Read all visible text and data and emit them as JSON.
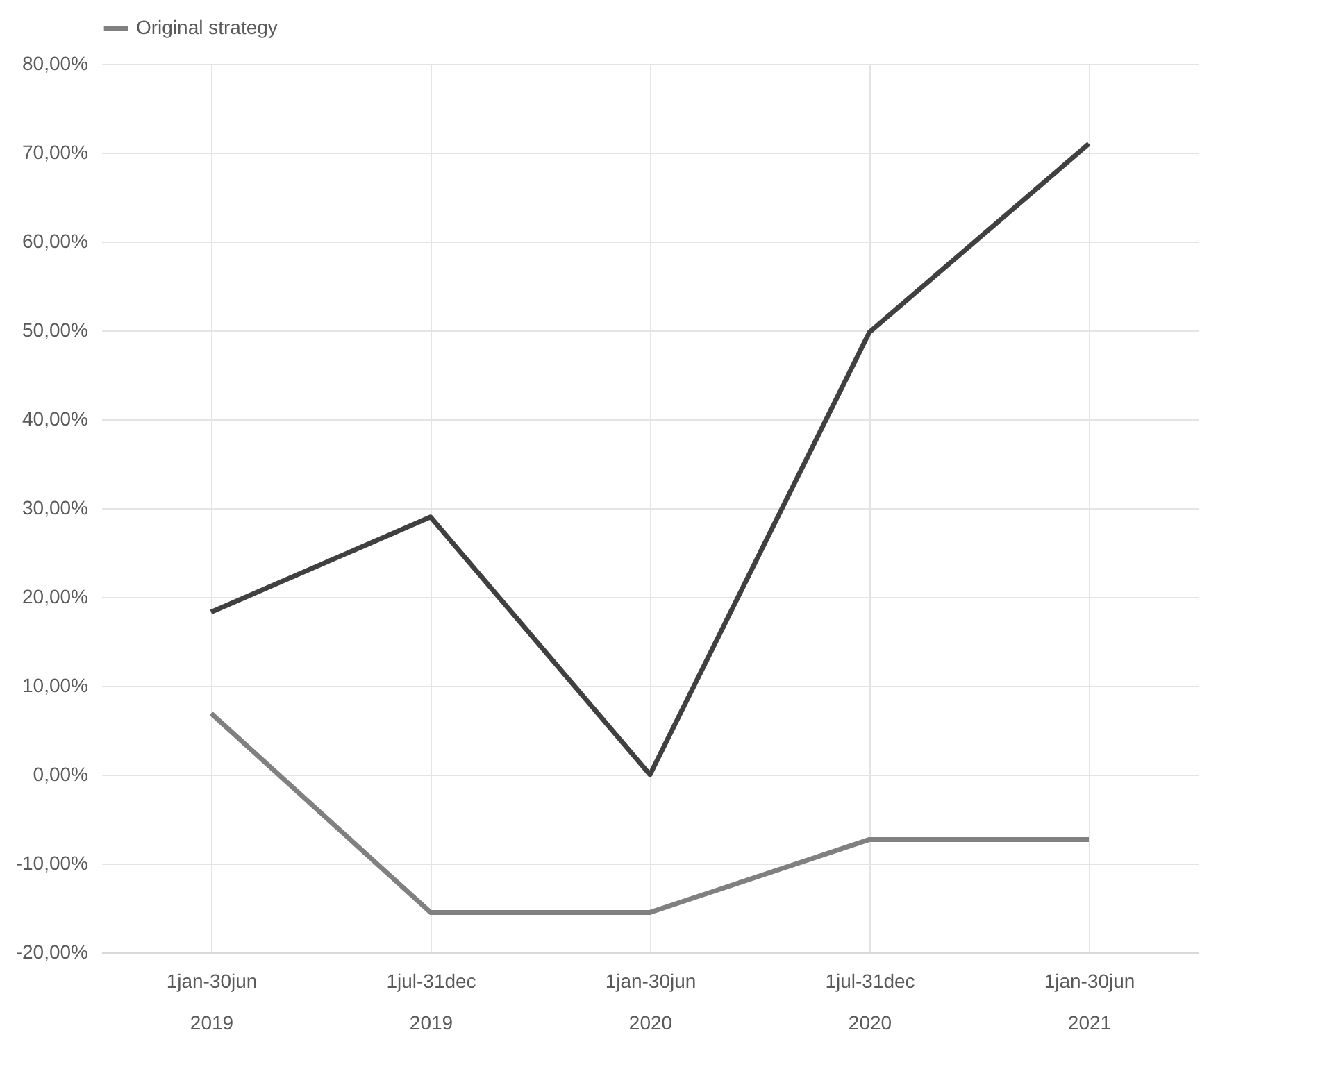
{
  "chart_data": {
    "type": "line",
    "categories": [
      "1jan-30jun\n2019",
      "1jul-31dec\n2019",
      "1jan-30jun\n2020",
      "1jul-31dec\n2020",
      "1jan-30jun\n2021"
    ],
    "series": [
      {
        "color": "#404040",
        "values": [
          18.3,
          29.0,
          0,
          49.8,
          71.0
        ]
      },
      {
        "name": "Original strategy",
        "color": "#808080",
        "values": [
          6.9,
          -15.5,
          -15.5,
          -7.3,
          -7.3
        ]
      }
    ],
    "ylim": [
      -20,
      80
    ],
    "yticks": [
      {
        "value": -20,
        "label": "-20,00%"
      },
      {
        "value": -10,
        "label": "-10,00%"
      },
      {
        "value": 0,
        "label": "0,00%"
      },
      {
        "value": 10,
        "label": "10,00%"
      },
      {
        "value": 20,
        "label": "20,00%"
      },
      {
        "value": 30,
        "label": "30,00%"
      },
      {
        "value": 40,
        "label": "40,00%"
      },
      {
        "value": 50,
        "label": "50,00%"
      },
      {
        "value": 60,
        "label": "60,00%"
      },
      {
        "value": 70,
        "label": "70,00%"
      },
      {
        "value": 80,
        "label": "80,00%"
      }
    ],
    "grid": true,
    "legend": "top",
    "marker": "none",
    "line_style": "solid"
  }
}
